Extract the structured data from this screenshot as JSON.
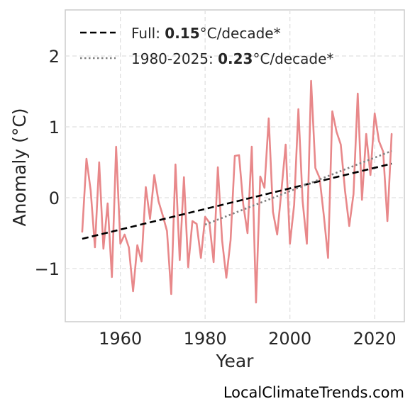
{
  "chart_data": {
    "type": "line",
    "title": "",
    "xlabel": "Year",
    "ylabel": "Anomaly (°C)",
    "xlim": [
      1947,
      2027
    ],
    "ylim": [
      -1.75,
      2.65
    ],
    "x_ticks": [
      1960,
      1980,
      2000,
      2020
    ],
    "x_tick_labels": [
      "1960",
      "1980",
      "2000",
      "2020"
    ],
    "y_ticks": [
      -1,
      0,
      1,
      2
    ],
    "y_tick_labels": [
      "−1",
      "0",
      "1",
      "2"
    ],
    "grid": true,
    "legend_position": "top-left",
    "series": [
      {
        "name": "",
        "color": "#e8888a",
        "style": "solid",
        "x": [
          1951,
          1952,
          1953,
          1954,
          1955,
          1956,
          1957,
          1958,
          1959,
          1960,
          1961,
          1962,
          1963,
          1964,
          1965,
          1966,
          1967,
          1968,
          1969,
          1970,
          1971,
          1972,
          1973,
          1974,
          1975,
          1976,
          1977,
          1978,
          1979,
          1980,
          1981,
          1982,
          1983,
          1984,
          1985,
          1986,
          1987,
          1988,
          1989,
          1990,
          1991,
          1992,
          1993,
          1994,
          1995,
          1996,
          1997,
          1998,
          1999,
          2000,
          2001,
          2002,
          2003,
          2004,
          2005,
          2006,
          2007,
          2008,
          2009,
          2010,
          2011,
          2012,
          2013,
          2014,
          2015,
          2016,
          2017,
          2018,
          2019,
          2020,
          2021,
          2022,
          2023,
          2024
        ],
        "y": [
          -0.48,
          0.55,
          0.1,
          -0.7,
          0.5,
          -0.72,
          -0.08,
          -1.12,
          0.72,
          -0.65,
          -0.52,
          -0.7,
          -1.32,
          -0.67,
          -0.9,
          0.15,
          -0.3,
          0.32,
          -0.05,
          -0.25,
          -0.47,
          -1.36,
          0.47,
          -0.88,
          0.29,
          -0.98,
          -0.33,
          -0.37,
          -0.85,
          -0.27,
          -0.35,
          -0.91,
          0.43,
          -0.6,
          -1.13,
          -0.6,
          0.59,
          0.6,
          -0.1,
          -0.5,
          0.72,
          -1.48,
          0.3,
          0.14,
          1.12,
          -0.2,
          -0.52,
          0.1,
          0.75,
          -0.65,
          -0.1,
          1.25,
          -0.05,
          -0.65,
          1.65,
          0.42,
          0.28,
          -0.25,
          -0.85,
          1.22,
          0.93,
          0.75,
          0.1,
          -0.4,
          0.05,
          1.47,
          -0.03,
          0.9,
          0.32,
          1.19,
          0.8,
          0.65,
          -0.33,
          0.9
        ]
      },
      {
        "name": "Full",
        "color": "#000000",
        "style": "dashed",
        "x": [
          1951,
          2024
        ],
        "y": [
          -0.58,
          0.48
        ],
        "rate": "0.15",
        "unit": "°C/decade*"
      },
      {
        "name": "1980-2025",
        "color": "#808080",
        "style": "dotted",
        "x": [
          1980,
          2024
        ],
        "y": [
          -0.38,
          0.66
        ],
        "rate": "0.23",
        "unit": "°C/decade*"
      }
    ]
  },
  "legend": {
    "full_label": "Full: ",
    "full_rate": "0.15",
    "full_unit": "°C/decade*",
    "recent_label": "1980-2025: ",
    "recent_rate": "0.23",
    "recent_unit": "°C/decade*"
  },
  "credit": "LocalClimateTrends.com",
  "colors": {
    "anomaly_line": "#e8888a",
    "full_trend": "#000000",
    "recent_trend": "#808080",
    "grid": "#e0e0e0",
    "frame": "#cccccc"
  }
}
